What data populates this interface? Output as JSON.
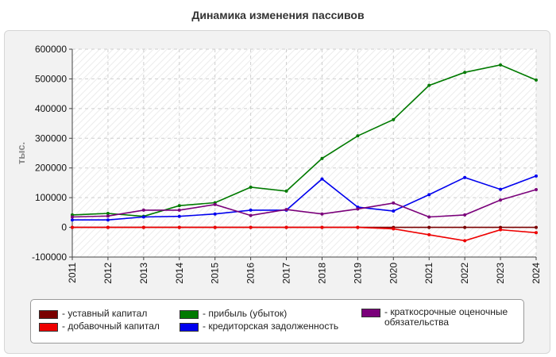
{
  "title": "Динамика изменения пассивов",
  "chart_data": {
    "type": "line",
    "title": "Динамика изменения пассивов",
    "xlabel": "",
    "ylabel": "тыс.",
    "categories": [
      "2011",
      "2012",
      "2013",
      "2014",
      "2015",
      "2016",
      "2017",
      "2018",
      "2019",
      "2020",
      "2021",
      "2022",
      "2023",
      "2024"
    ],
    "ylim": [
      -100000,
      600000
    ],
    "yticks": [
      "-100000",
      "0",
      "100000",
      "200000",
      "300000",
      "400000",
      "500000",
      "600000"
    ],
    "grid": true,
    "legend_position": "bottom",
    "series": [
      {
        "name": "- уставный капитал",
        "color": "#7a0000",
        "values": [
          0,
          0,
          0,
          0,
          0,
          0,
          0,
          0,
          0,
          0,
          0,
          0,
          0,
          0
        ]
      },
      {
        "name": "- добавочный капитал",
        "color": "#ee0000",
        "values": [
          0,
          0,
          0,
          0,
          0,
          0,
          0,
          0,
          0,
          -5000,
          -25000,
          -45000,
          -8000,
          -18000
        ]
      },
      {
        "name": "- прибыль (убыток)",
        "color": "#007a00",
        "values": [
          42000,
          47000,
          37000,
          73000,
          83000,
          135000,
          122000,
          232000,
          308000,
          363000,
          478000,
          522000,
          547000,
          496000
        ]
      },
      {
        "name": "- кредиторская задолженность",
        "color": "#0000ee",
        "values": [
          25000,
          25000,
          35000,
          37000,
          45000,
          58000,
          58000,
          163000,
          68000,
          55000,
          110000,
          168000,
          128000,
          173000
        ]
      },
      {
        "name": "- краткосрочные оценочные обязательства",
        "color": "#7a007a",
        "values": [
          35000,
          38000,
          58000,
          58000,
          77000,
          40000,
          60000,
          45000,
          62000,
          82000,
          35000,
          42000,
          92000,
          127000
        ]
      }
    ]
  },
  "legend": {
    "items": [
      {
        "label": "- уставный капитал",
        "color": "#7a0000"
      },
      {
        "label": "- добавочный капитал",
        "color": "#ee0000"
      },
      {
        "label": "- прибыль (убыток)",
        "color": "#007a00"
      },
      {
        "label": "- кредиторская задолженность",
        "color": "#0000ee"
      },
      {
        "label": "- краткосрочные оценочные обязательства",
        "color": "#7a007a"
      }
    ]
  }
}
